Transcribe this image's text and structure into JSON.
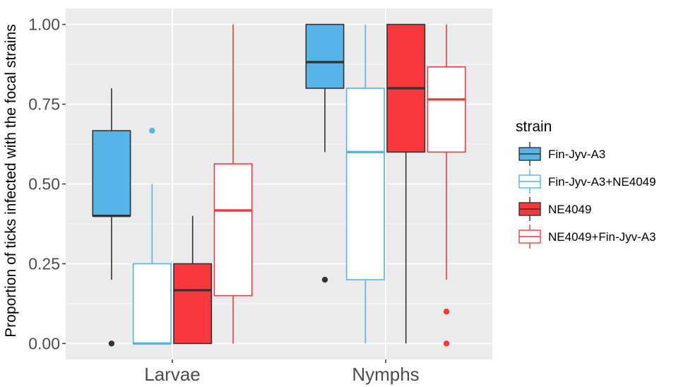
{
  "chart_data": {
    "type": "boxplot",
    "title": "",
    "xlabel": "",
    "ylabel": "Proportion of ticks infected with the focal strains",
    "ylim": [
      -0.05,
      1.05
    ],
    "y_ticks": [
      0.0,
      0.25,
      0.5,
      0.75,
      1.0
    ],
    "y_tick_labels": [
      "0.00",
      "0.25",
      "0.50",
      "0.75",
      "1.00"
    ],
    "categories": [
      "Larvae",
      "Nymphs"
    ],
    "grid": true,
    "legend": {
      "title": "strain",
      "position": "right"
    },
    "series": [
      {
        "name": "Fin-Jyv-A3",
        "fill": "#56B4E9",
        "line": "#333333",
        "boxes": [
          {
            "category": "Larvae",
            "min": 0.2,
            "q1": 0.4,
            "median": 0.4,
            "q3": 0.667,
            "max": 0.8,
            "outliers": [
              0.0
            ]
          },
          {
            "category": "Nymphs",
            "min": 0.6,
            "q1": 0.8,
            "median": 0.882,
            "q3": 1.0,
            "max": 1.0,
            "outliers": [
              0.2
            ]
          }
        ]
      },
      {
        "name": "Fin-Jyv-A3+NE4049",
        "fill": "#ffffff",
        "line": "#56B4E9",
        "boxes": [
          {
            "category": "Larvae",
            "min": 0.0,
            "q1": 0.0,
            "median": 0.0,
            "q3": 0.25,
            "max": 0.5,
            "outliers": [
              0.667
            ]
          },
          {
            "category": "Nymphs",
            "min": 0.0,
            "q1": 0.2,
            "median": 0.6,
            "q3": 0.8,
            "max": 1.0,
            "outliers": []
          }
        ]
      },
      {
        "name": "NE4049",
        "fill": "#F8383C",
        "line": "#333333",
        "boxes": [
          {
            "category": "Larvae",
            "min": 0.0,
            "q1": 0.0,
            "median": 0.167,
            "q3": 0.25,
            "max": 0.4,
            "outliers": []
          },
          {
            "category": "Nymphs",
            "min": 0.0,
            "q1": 0.6,
            "median": 0.8,
            "q3": 1.0,
            "max": 1.0,
            "outliers": []
          }
        ]
      },
      {
        "name": "NE4049+Fin-Jyv-A3",
        "fill": "#ffffff",
        "line": "#F8383C",
        "boxes": [
          {
            "category": "Larvae",
            "min": 0.0,
            "q1": 0.15,
            "median": 0.417,
            "q3": 0.563,
            "max": 1.0,
            "outliers": []
          },
          {
            "category": "Nymphs",
            "min": 0.2,
            "q1": 0.6,
            "median": 0.765,
            "q3": 0.867,
            "max": 1.0,
            "outliers": [
              0.1,
              0.0
            ]
          }
        ]
      }
    ]
  }
}
